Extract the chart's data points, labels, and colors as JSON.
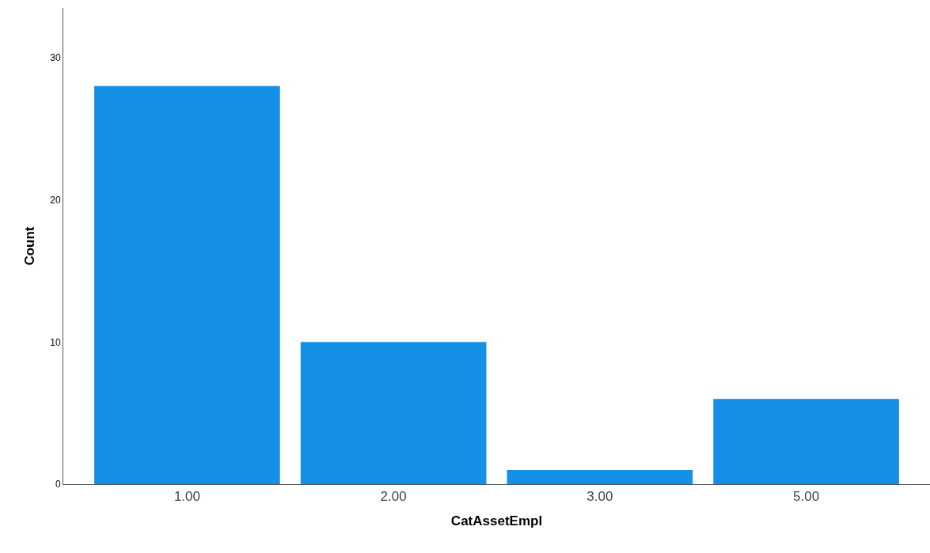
{
  "chart_data": {
    "type": "bar",
    "xlabel": "CatAssetEmpl",
    "ylabel": "Count",
    "categories": [
      "1.00",
      "2.00",
      "3.00",
      "5.00"
    ],
    "values": [
      28,
      10,
      1,
      6
    ],
    "color": "#1490e6",
    "ylim": [
      0,
      33.5
    ],
    "yticks": [
      0,
      10,
      20,
      30
    ]
  }
}
